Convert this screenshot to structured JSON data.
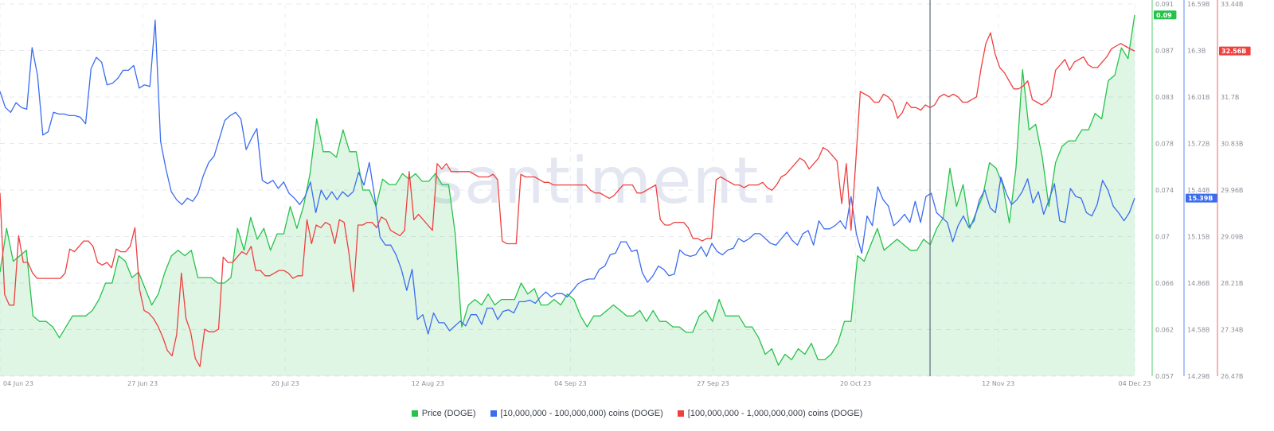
{
  "watermark": "santiment.",
  "chart_data": {
    "type": "line",
    "x_ticks": [
      "04 Jun 23",
      "27 Jun 23",
      "20 Jul 23",
      "12 Aug 23",
      "04 Sep 23",
      "27 Sep 23",
      "20 Oct 23",
      "12 Nov 23",
      "04 Dec 23"
    ],
    "x_range": [
      "2023-06-04",
      "2023-12-04"
    ],
    "crosshair_date": "2023-11-01",
    "axes": {
      "price": {
        "ylim": [
          0.057,
          0.091
        ],
        "ticks": [
          "0.091",
          "0.087",
          "0.083",
          "0.078",
          "0.074",
          "0.07",
          "0.066",
          "0.062",
          "0.057"
        ],
        "current_label": "0.09",
        "color": "#26c24a"
      },
      "mid": {
        "ylim": [
          14.29,
          16.59
        ],
        "ticks": [
          "16.59B",
          "16.3B",
          "16.01B",
          "15.72B",
          "15.44B",
          "15.15B",
          "14.86B",
          "14.58B",
          "14.29B"
        ],
        "current_label": "15.39B",
        "color": "#3b6cf0"
      },
      "large": {
        "ylim": [
          26.47,
          33.44
        ],
        "ticks": [
          "33.44B",
          "32.56B",
          "31.7B",
          "30.83B",
          "29.96B",
          "29.09B",
          "28.21B",
          "27.34B",
          "26.47B"
        ],
        "current_label": "32.56B",
        "color": "#ef3f3f"
      }
    },
    "series": [
      {
        "name": "Price (DOGE)",
        "axis": "price",
        "color": "#26c24a",
        "fill": true,
        "values": [
          0.0665,
          0.0705,
          0.0675,
          0.068,
          0.0685,
          0.0625,
          0.062,
          0.062,
          0.0615,
          0.0605,
          0.0615,
          0.0625,
          0.0625,
          0.0625,
          0.063,
          0.064,
          0.0655,
          0.0655,
          0.068,
          0.0675,
          0.066,
          0.0665,
          0.065,
          0.0635,
          0.0645,
          0.0665,
          0.068,
          0.0685,
          0.068,
          0.0685,
          0.066,
          0.066,
          0.066,
          0.0655,
          0.0655,
          0.066,
          0.0705,
          0.0685,
          0.0715,
          0.0695,
          0.0705,
          0.0685,
          0.07,
          0.07,
          0.0725,
          0.0705,
          0.0725,
          0.0755,
          0.0805,
          0.0775,
          0.0775,
          0.077,
          0.0795,
          0.0775,
          0.0775,
          0.074,
          0.074,
          0.0725,
          0.075,
          0.0745,
          0.0745,
          0.0755,
          0.075,
          0.0755,
          0.0748,
          0.0748,
          0.0755,
          0.0745,
          0.0745,
          0.07,
          0.0615,
          0.0635,
          0.064,
          0.0635,
          0.0645,
          0.0635,
          0.064,
          0.064,
          0.064,
          0.0655,
          0.0645,
          0.065,
          0.0635,
          0.0635,
          0.064,
          0.0635,
          0.0645,
          0.064,
          0.0625,
          0.0615,
          0.0625,
          0.0625,
          0.063,
          0.0635,
          0.063,
          0.0625,
          0.0625,
          0.063,
          0.062,
          0.063,
          0.062,
          0.062,
          0.0615,
          0.0615,
          0.061,
          0.061,
          0.0625,
          0.063,
          0.062,
          0.064,
          0.0625,
          0.0625,
          0.0625,
          0.0615,
          0.0615,
          0.0605,
          0.059,
          0.0595,
          0.058,
          0.059,
          0.0585,
          0.0595,
          0.059,
          0.06,
          0.0585,
          0.0585,
          0.059,
          0.06,
          0.062,
          0.062,
          0.068,
          0.0675,
          0.069,
          0.0705,
          0.0685,
          0.069,
          0.0695,
          0.069,
          0.0685,
          0.0685,
          0.0695,
          0.069,
          0.0705,
          0.0715,
          0.076,
          0.0725,
          0.0745,
          0.0705,
          0.072,
          0.0735,
          0.0765,
          0.076,
          0.0745,
          0.071,
          0.076,
          0.085,
          0.0795,
          0.08,
          0.077,
          0.0725,
          0.0765,
          0.078,
          0.0785,
          0.0785,
          0.0795,
          0.0795,
          0.081,
          0.0805,
          0.084,
          0.0845,
          0.087,
          0.086,
          0.09
        ]
      },
      {
        "name": "[10,000,000 - 100,000,000) coins (DOGE)",
        "axis": "mid",
        "color": "#3b6cf0",
        "values": [
          16.05,
          15.95,
          15.92,
          15.98,
          15.95,
          15.94,
          16.32,
          16.15,
          15.78,
          15.8,
          15.92,
          15.91,
          15.91,
          15.9,
          15.9,
          15.89,
          15.85,
          16.19,
          16.26,
          16.23,
          16.09,
          16.1,
          16.13,
          16.18,
          16.18,
          16.21,
          16.07,
          16.09,
          16.08,
          16.49,
          15.74,
          15.57,
          15.43,
          15.38,
          15.35,
          15.39,
          15.37,
          15.42,
          15.53,
          15.61,
          15.65,
          15.76,
          15.87,
          15.9,
          15.92,
          15.88,
          15.69,
          15.76,
          15.82,
          15.5,
          15.48,
          15.5,
          15.45,
          15.49,
          15.42,
          15.39,
          15.35,
          15.4,
          15.49,
          15.3,
          15.44,
          15.38,
          15.43,
          15.38,
          15.43,
          15.4,
          15.43,
          15.55,
          15.47,
          15.61,
          15.4,
          15.15,
          15.1,
          15.1,
          15.04,
          14.95,
          14.82,
          14.95,
          14.64,
          14.67,
          14.55,
          14.68,
          14.62,
          14.62,
          14.57,
          14.6,
          14.63,
          14.6,
          14.67,
          14.67,
          14.61,
          14.71,
          14.71,
          14.64,
          14.69,
          14.7,
          14.68,
          14.75,
          14.75,
          14.76,
          14.74,
          14.78,
          14.81,
          14.78,
          14.8,
          14.8,
          14.78,
          14.82,
          14.86,
          14.88,
          14.89,
          14.89,
          14.95,
          14.97,
          15.04,
          15.05,
          15.12,
          15.12,
          15.06,
          15.07,
          14.93,
          14.87,
          14.91,
          14.97,
          14.95,
          14.91,
          14.92,
          15.07,
          15.04,
          15.03,
          15.04,
          15.09,
          15.03,
          15.11,
          15.06,
          15.04,
          15.07,
          15.08,
          15.14,
          15.12,
          15.14,
          15.17,
          15.17,
          15.14,
          15.11,
          15.1,
          15.14,
          15.18,
          15.13,
          15.1,
          15.17,
          15.19,
          15.1,
          15.25,
          15.2,
          15.2,
          15.22,
          15.25,
          15.2,
          15.4,
          15.17,
          15.05,
          15.28,
          15.22,
          15.46,
          15.38,
          15.34,
          15.22,
          15.25,
          15.29,
          15.24,
          15.37,
          15.24,
          15.4,
          15.42,
          15.3,
          15.27,
          15.24,
          15.12,
          15.22,
          15.28,
          15.21,
          15.25,
          15.38,
          15.44,
          15.33,
          15.3,
          15.52,
          15.42,
          15.35,
          15.38,
          15.43,
          15.51,
          15.36,
          15.43,
          15.29,
          15.38,
          15.48,
          15.25,
          15.24,
          15.45,
          15.4,
          15.39,
          15.3,
          15.28,
          15.35,
          15.5,
          15.44,
          15.34,
          15.3,
          15.25,
          15.3,
          15.39
        ]
      },
      {
        "name": "[100,000,000 - 1,000,000,000) coins (DOGE)",
        "axis": "large",
        "color": "#ef3f3f",
        "values": [
          29.9,
          28.0,
          27.8,
          27.8,
          29.1,
          28.6,
          28.6,
          28.4,
          28.3,
          28.3,
          28.3,
          28.3,
          28.3,
          28.3,
          28.4,
          28.85,
          28.8,
          28.9,
          29.0,
          29.0,
          28.9,
          28.6,
          28.55,
          28.6,
          28.5,
          28.85,
          28.8,
          28.8,
          28.9,
          29.25,
          28.1,
          27.7,
          27.65,
          27.55,
          27.4,
          27.2,
          26.95,
          26.85,
          27.25,
          28.4,
          27.55,
          27.3,
          26.8,
          26.65,
          27.35,
          27.3,
          27.3,
          27.35,
          28.7,
          28.6,
          28.6,
          28.7,
          28.8,
          28.75,
          28.9,
          28.45,
          28.45,
          28.35,
          28.35,
          28.4,
          28.45,
          28.45,
          28.4,
          28.3,
          28.35,
          28.35,
          29.4,
          28.95,
          29.3,
          29.25,
          29.35,
          29.3,
          28.95,
          29.4,
          29.35,
          28.8,
          28.05,
          29.3,
          29.3,
          29.35,
          29.35,
          29.25,
          29.45,
          29.4,
          29.2,
          29.15,
          29.1,
          29.2,
          30.3,
          29.4,
          29.5,
          29.4,
          29.3,
          29.2,
          30.45,
          30.35,
          30.45,
          30.3,
          30.3,
          30.3,
          30.3,
          30.3,
          30.25,
          30.2,
          30.2,
          30.2,
          30.25,
          30.15,
          29.0,
          28.95,
          28.95,
          28.95,
          30.25,
          30.2,
          30.2,
          30.2,
          30.15,
          30.1,
          30.1,
          30.05,
          30.05,
          30.05,
          30.05,
          30.05,
          30.05,
          30.05,
          30.05,
          29.95,
          29.9,
          29.9,
          29.85,
          29.8,
          29.85,
          29.95,
          30.05,
          30.05,
          30.05,
          29.9,
          29.9,
          29.95,
          30.0,
          30.05,
          29.4,
          29.3,
          29.3,
          29.35,
          29.35,
          29.35,
          29.25,
          29.05,
          29.05,
          29.0,
          29.05,
          29.05,
          30.15,
          30.2,
          30.15,
          30.1,
          30.05,
          30.05,
          30.0,
          30.05,
          30.05,
          30.05,
          30.1,
          30.0,
          29.95,
          30.05,
          30.2,
          30.25,
          30.35,
          30.45,
          30.55,
          30.5,
          30.35,
          30.45,
          30.55,
          30.75,
          30.7,
          30.6,
          30.5,
          29.7,
          30.45,
          29.2,
          30.45,
          31.8,
          31.75,
          31.7,
          31.6,
          31.6,
          31.75,
          31.7,
          31.6,
          31.3,
          31.4,
          31.6,
          31.5,
          31.5,
          31.45,
          31.55,
          31.5,
          31.55,
          31.7,
          31.75,
          31.7,
          31.75,
          31.7,
          31.6,
          31.6,
          31.65,
          31.7,
          32.25,
          32.7,
          32.9,
          32.5,
          32.25,
          32.15,
          32.0,
          31.85,
          31.85,
          31.9,
          32.0,
          31.65,
          31.6,
          31.55,
          31.6,
          31.7,
          32.2,
          32.3,
          32.4,
          32.2,
          32.35,
          32.4,
          32.45,
          32.3,
          32.25,
          32.25,
          32.35,
          32.45,
          32.6,
          32.65,
          32.7,
          32.65,
          32.6,
          32.56
        ]
      }
    ],
    "legend": [
      {
        "label": "Price (DOGE)",
        "color": "#26c24a"
      },
      {
        "label": "[10,000,000 - 100,000,000) coins (DOGE)",
        "color": "#3b6cf0"
      },
      {
        "label": "[100,000,000 - 1,000,000,000) coins (DOGE)",
        "color": "#ef3f3f"
      }
    ]
  }
}
